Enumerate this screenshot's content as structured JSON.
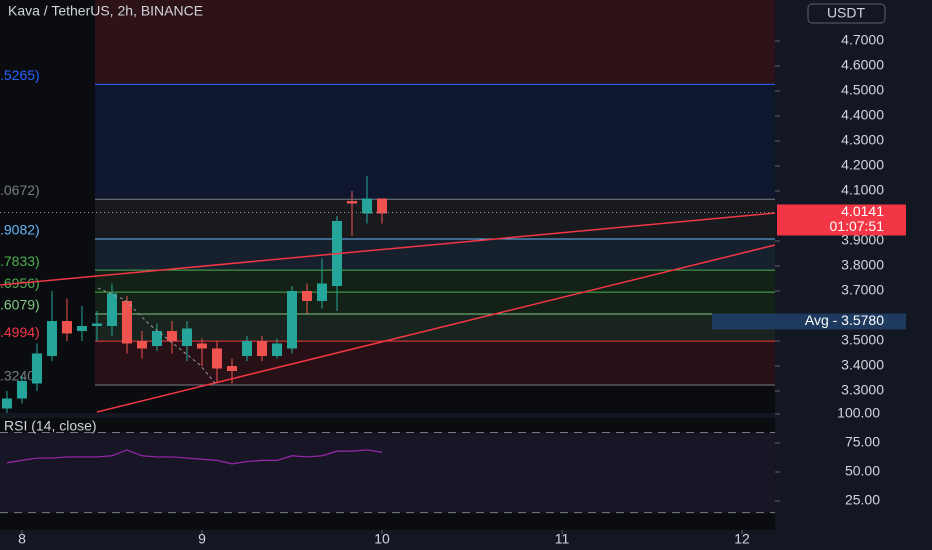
{
  "header": {
    "title": "Kava / TetherUS, 2h, BINANCE",
    "currency": "USDT"
  },
  "chart_data": [
    {
      "type": "candlestick",
      "x": [
        7.9167,
        8.0,
        8.0833,
        8.1667,
        8.25,
        8.3333,
        8.4167,
        8.5,
        8.5833,
        8.6667,
        8.75,
        8.8333,
        8.9167,
        9.0,
        9.0833,
        9.1667,
        9.25,
        9.3333,
        9.4167,
        9.5,
        9.5833,
        9.6667,
        9.75,
        9.8333,
        9.9167,
        10.0
      ],
      "open": [
        3.23,
        3.27,
        3.33,
        3.44,
        3.58,
        3.54,
        3.56,
        3.56,
        3.66,
        3.5,
        3.48,
        3.54,
        3.48,
        3.49,
        3.47,
        3.4,
        3.44,
        3.5,
        3.44,
        3.47,
        3.7,
        3.66,
        3.72,
        4.06,
        4.01,
        4.07
      ],
      "high": [
        3.3,
        3.36,
        3.49,
        3.7,
        3.67,
        3.64,
        3.62,
        3.73,
        3.68,
        3.54,
        3.57,
        3.58,
        3.58,
        3.51,
        3.5,
        3.43,
        3.52,
        3.52,
        3.51,
        3.72,
        3.73,
        3.83,
        4.0,
        4.1,
        4.16,
        4.07
      ],
      "low": [
        3.21,
        3.25,
        3.3,
        3.42,
        3.5,
        3.5,
        3.5,
        3.52,
        3.45,
        3.43,
        3.46,
        3.45,
        3.42,
        3.4,
        3.33,
        3.33,
        3.42,
        3.42,
        3.43,
        3.45,
        3.61,
        3.63,
        3.62,
        3.92,
        3.97,
        3.97
      ],
      "close": [
        3.27,
        3.34,
        3.45,
        3.58,
        3.53,
        3.56,
        3.57,
        3.69,
        3.49,
        3.47,
        3.54,
        3.5,
        3.55,
        3.47,
        3.39,
        3.38,
        3.5,
        3.44,
        3.49,
        3.7,
        3.66,
        3.73,
        3.98,
        4.05,
        4.07,
        4.01
      ],
      "up_color": "#26a69a",
      "down_color": "#ef5350",
      "xlim": [
        7.878,
        12.183
      ],
      "xticks": [
        8,
        9,
        10,
        11,
        12
      ],
      "ylim": [
        3.212,
        4.864
      ],
      "yticks": [
        {
          "value": 3.3,
          "label": "3.3000"
        },
        {
          "value": 3.4,
          "label": "3.4000"
        },
        {
          "value": 3.5,
          "label": "3.5000"
        },
        {
          "value": 3.7,
          "label": "3.7000"
        },
        {
          "value": 3.8,
          "label": "3.8000"
        },
        {
          "value": 3.9,
          "label": "3.9000"
        },
        {
          "value": 4.1,
          "label": "4.1000"
        },
        {
          "value": 4.2,
          "label": "4.2000"
        },
        {
          "value": 4.3,
          "label": "4.3000"
        },
        {
          "value": 4.4,
          "label": "4.4000"
        },
        {
          "value": 4.5,
          "label": "4.5000"
        },
        {
          "value": 4.6,
          "label": "4.6000"
        },
        {
          "value": 4.7,
          "label": "4.7000"
        }
      ],
      "fib_levels": [
        {
          "value": 4.5265,
          "label": ".5265)",
          "color": "#2962ff"
        },
        {
          "value": 4.0672,
          "label": ".0672)",
          "color": "#787b86"
        },
        {
          "value": 3.9082,
          "label": ".9082)",
          "color": "#64b5f6"
        },
        {
          "value": 3.7833,
          "label": ".7833)",
          "color": "#4caf50"
        },
        {
          "value": 3.6956,
          "label": ".6956)",
          "color": "#4caf50"
        },
        {
          "value": 3.6079,
          "label": ".6079)",
          "color": "#81c784"
        },
        {
          "value": 3.4994,
          "label": ".4994)",
          "color": "#f23645"
        },
        {
          "value": 3.324,
          "label": ".3240)",
          "color": "#787b86"
        }
      ],
      "last_price": {
        "value": 4.0141,
        "label": "4.0141"
      },
      "countdown": "01:07:51",
      "avg": {
        "value": 3.578,
        "label": "Avg - 3.5780"
      }
    },
    {
      "type": "line",
      "title": "RSI (14, close)",
      "x": [
        7.9167,
        8.0,
        8.0833,
        8.1667,
        8.25,
        8.3333,
        8.4167,
        8.5,
        8.5833,
        8.6667,
        8.75,
        8.8333,
        8.9167,
        9.0,
        9.0833,
        9.1667,
        9.25,
        9.3333,
        9.4167,
        9.5,
        9.5833,
        9.6667,
        9.75,
        9.8333,
        9.9167,
        10.0
      ],
      "values": [
        58,
        60,
        62,
        62,
        63,
        63,
        63,
        64,
        69,
        64,
        63,
        63,
        62,
        61,
        60,
        57,
        59,
        60,
        60,
        64,
        63,
        64,
        68,
        68,
        69,
        67
      ],
      "color": "#9c27b0",
      "ylim": [
        0,
        100
      ],
      "yticks": [
        {
          "value": 25,
          "label": "25.00"
        },
        {
          "value": 50,
          "label": "50.00"
        },
        {
          "value": 75,
          "label": "75.00"
        },
        {
          "value": 100,
          "label": "100.00"
        }
      ],
      "bands": [
        84,
        15
      ]
    }
  ]
}
